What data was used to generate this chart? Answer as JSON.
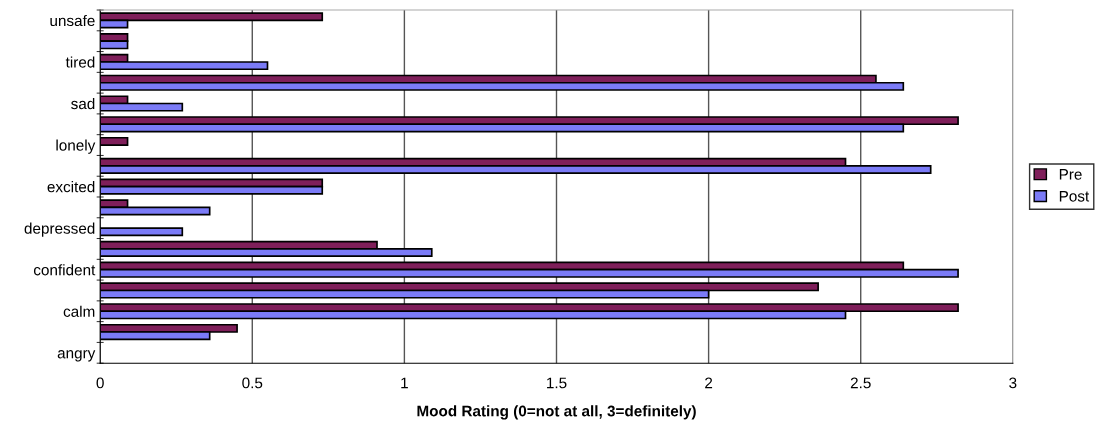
{
  "chart_data": {
    "type": "bar",
    "orientation": "horizontal",
    "xlabel": "Mood Rating (0=not at all, 3=definitely)",
    "categories": [
      "unsafe",
      null,
      "tired",
      null,
      "sad",
      null,
      "lonely",
      null,
      "excited",
      null,
      "depressed",
      null,
      "confident",
      null,
      "calm",
      null,
      "angry"
    ],
    "series": [
      {
        "name": "Pre",
        "color": "#7f1f5a",
        "values": [
          0.73,
          0.09,
          0.09,
          2.55,
          0.09,
          2.82,
          0.09,
          2.45,
          0.73,
          0.09,
          null,
          0.91,
          2.64,
          2.36,
          2.82,
          0.45,
          null
        ]
      },
      {
        "name": "Post",
        "color": "#7b7bf7",
        "values": [
          0.09,
          0.09,
          0.55,
          2.64,
          0.27,
          2.64,
          null,
          2.73,
          0.73,
          0.36,
          0.27,
          1.09,
          2.82,
          2.0,
          2.45,
          0.36,
          null
        ]
      }
    ],
    "xlim": [
      0,
      3
    ],
    "xticks": [
      0,
      0.5,
      1,
      1.5,
      2,
      2.5,
      3
    ],
    "grid": "x",
    "legend": "right"
  }
}
